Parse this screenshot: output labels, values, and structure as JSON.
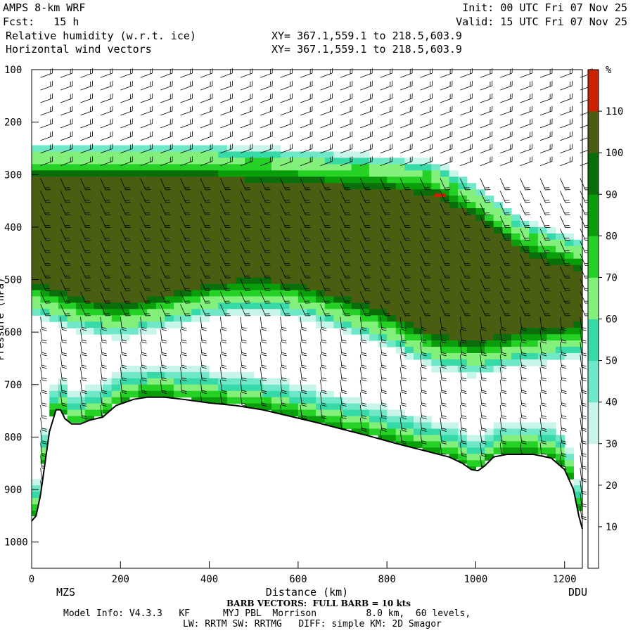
{
  "header": {
    "model": "AMPS 8-km WRF",
    "init": "Init: 00 UTC Fri 07 Nov 25",
    "fcst": "Fcst:   15 h",
    "valid": "Valid: 15 UTC Fri 07 Nov 25",
    "field1": "Relative humidity (w.r.t. ice)",
    "field2": "Horizontal wind vectors",
    "xy1": "XY= 367.1,559.1 to 218.5,603.9",
    "xy2": "XY= 367.1,559.1 to 218.5,603.9"
  },
  "footer": {
    "barb_note": "BARB VECTORS:  FULL BARB = 10 kts",
    "model_info": "Model Info: V4.3.3   KF      MYJ PBL  Morrison         8.0 km,  60 levels,",
    "physics": "LW: RRTM SW: RRTMG   DIFF: simple KM: 2D Smagor"
  },
  "chart_data": {
    "type": "heatmap",
    "xlabel": "Distance (km)",
    "ylabel": "Pressure (hPa)",
    "xlim": [
      0,
      1240
    ],
    "ylim": [
      1050,
      100
    ],
    "x_ticks": [
      0,
      200,
      400,
      600,
      800,
      1000,
      1200
    ],
    "y_ticks": [
      100,
      200,
      300,
      400,
      500,
      600,
      700,
      800,
      900,
      1000
    ],
    "end_labels": {
      "left": "MZS",
      "right": "DDU"
    },
    "colorbar": {
      "unit": "%",
      "levels": [
        10,
        20,
        30,
        40,
        50,
        60,
        70,
        80,
        90,
        100,
        110
      ],
      "colors": [
        "#ffffff",
        "#ffffff",
        "#ffffff",
        "#c8f5ea",
        "#6fe8c9",
        "#36d9a8",
        "#84f07c",
        "#26d126",
        "#0a9e0a",
        "#0a6e0a",
        "#4a5e12",
        "#cc2200"
      ]
    },
    "terrain_hpa": [
      [
        0,
        960
      ],
      [
        10,
        950
      ],
      [
        20,
        910
      ],
      [
        30,
        850
      ],
      [
        40,
        790
      ],
      [
        55,
        748
      ],
      [
        65,
        748
      ],
      [
        75,
        765
      ],
      [
        90,
        775
      ],
      [
        110,
        775
      ],
      [
        130,
        768
      ],
      [
        160,
        762
      ],
      [
        190,
        740
      ],
      [
        230,
        728
      ],
      [
        260,
        724
      ],
      [
        300,
        724
      ],
      [
        340,
        728
      ],
      [
        400,
        735
      ],
      [
        460,
        740
      ],
      [
        520,
        748
      ],
      [
        580,
        760
      ],
      [
        640,
        772
      ],
      [
        700,
        785
      ],
      [
        760,
        798
      ],
      [
        820,
        812
      ],
      [
        880,
        825
      ],
      [
        940,
        838
      ],
      [
        970,
        850
      ],
      [
        990,
        862
      ],
      [
        1005,
        864
      ],
      [
        1020,
        855
      ],
      [
        1040,
        838
      ],
      [
        1070,
        833
      ],
      [
        1130,
        833
      ],
      [
        1170,
        840
      ],
      [
        1200,
        862
      ],
      [
        1220,
        900
      ],
      [
        1232,
        950
      ],
      [
        1240,
        975
      ]
    ],
    "moist_layer": {
      "top_hpa": [
        [
          0,
          270
        ],
        [
          400,
          270
        ],
        [
          700,
          285
        ],
        [
          900,
          300
        ],
        [
          1000,
          345
        ],
        [
          1100,
          410
        ],
        [
          1240,
          450
        ]
      ],
      "base_hpa": [
        [
          0,
          540
        ],
        [
          100,
          570
        ],
        [
          200,
          585
        ],
        [
          300,
          565
        ],
        [
          400,
          545
        ],
        [
          500,
          535
        ],
        [
          600,
          545
        ],
        [
          700,
          570
        ],
        [
          800,
          600
        ],
        [
          900,
          640
        ],
        [
          1000,
          655
        ],
        [
          1100,
          635
        ],
        [
          1240,
          620
        ]
      ],
      "peak_rh": 105
    },
    "saturated_hotspot": {
      "x_km": 920,
      "p_hpa": 340
    }
  }
}
